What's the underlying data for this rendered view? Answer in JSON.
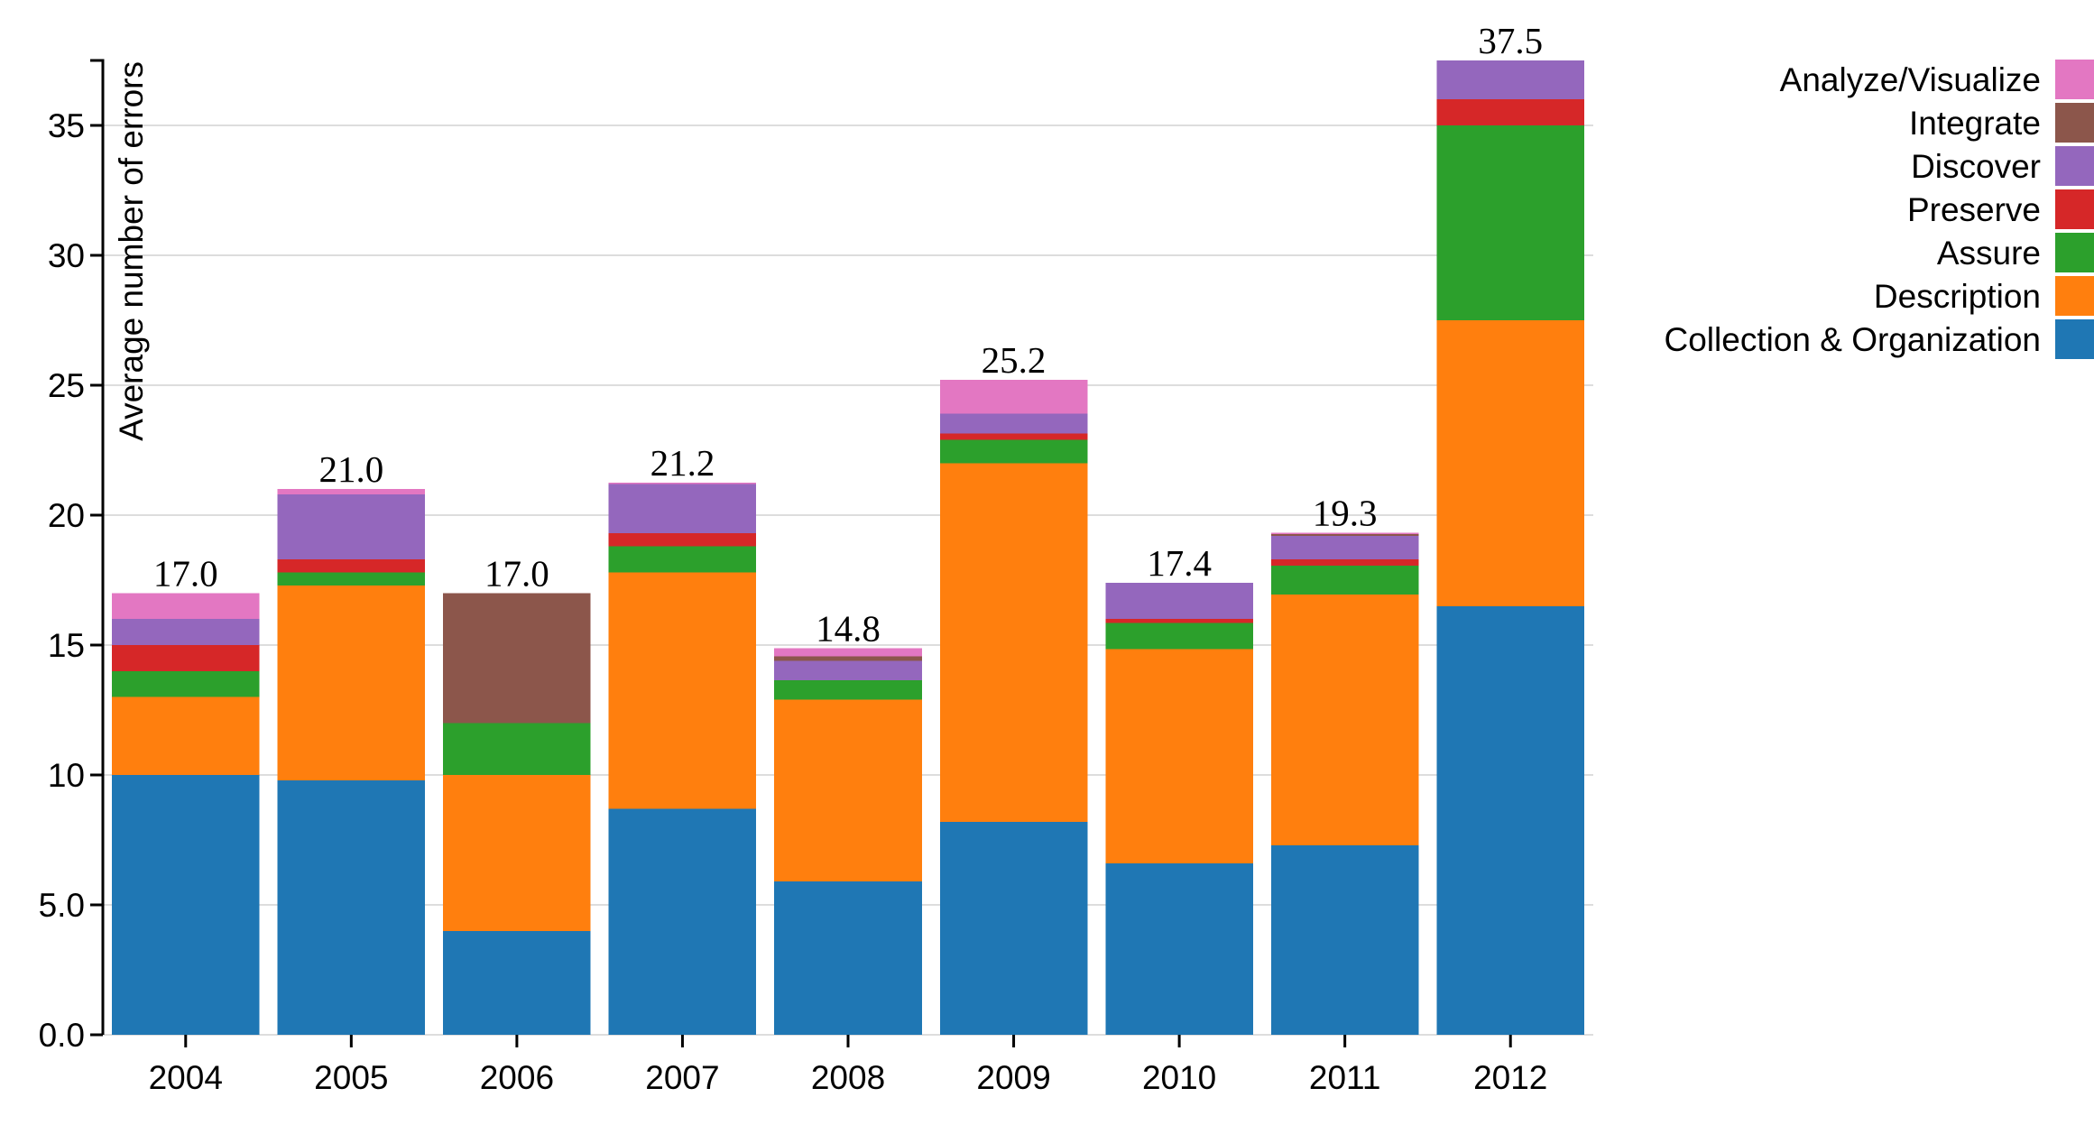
{
  "chart_data": {
    "type": "bar",
    "stacked": true,
    "title": "",
    "xlabel": "",
    "ylabel": "Average number of errors",
    "ylim": [
      0,
      37.5
    ],
    "yticks": [
      0,
      5,
      10,
      15,
      20,
      25,
      30,
      35
    ],
    "ytick_labels": [
      "0.0",
      "5.0",
      "10",
      "15",
      "20",
      "25",
      "30",
      "35"
    ],
    "grid": "horizontal",
    "legend_position": "top-right",
    "categories": [
      "2004",
      "2005",
      "2006",
      "2007",
      "2008",
      "2009",
      "2010",
      "2011",
      "2012"
    ],
    "totals": [
      "17.0",
      "21.0",
      "17.0",
      "21.2",
      "14.8",
      "25.2",
      "17.4",
      "19.3",
      "37.5"
    ],
    "series": [
      {
        "name": "Collection & Organization",
        "color": "#1f77b4",
        "values": [
          10.0,
          9.8,
          4.0,
          8.7,
          5.9,
          8.2,
          6.6,
          7.3,
          16.5
        ]
      },
      {
        "name": "Description",
        "color": "#ff7f0e",
        "values": [
          3.0,
          7.5,
          6.0,
          9.1,
          7.0,
          13.8,
          8.25,
          9.65,
          11.0
        ]
      },
      {
        "name": "Assure",
        "color": "#2ca02c",
        "values": [
          1.0,
          0.5,
          2.0,
          1.0,
          0.75,
          0.9,
          1.0,
          1.1,
          7.5
        ]
      },
      {
        "name": "Preserve",
        "color": "#d62728",
        "values": [
          1.0,
          0.5,
          0.0,
          0.5,
          0.0,
          0.25,
          0.15,
          0.25,
          1.0
        ]
      },
      {
        "name": "Discover",
        "color": "#9467bd",
        "values": [
          1.0,
          2.5,
          0.0,
          1.9,
          0.75,
          0.75,
          1.4,
          0.9,
          1.5
        ]
      },
      {
        "name": "Integrate",
        "color": "#8c564b",
        "values": [
          0.0,
          0.0,
          5.0,
          0.0,
          0.17,
          0.0,
          0.0,
          0.07,
          0.0
        ]
      },
      {
        "name": "Analyze/Visualize",
        "color": "#e377c2",
        "values": [
          1.0,
          0.2,
          0.0,
          0.05,
          0.3,
          1.3,
          0.0,
          0.05,
          0.0
        ]
      }
    ],
    "legend_order": [
      "Analyze/Visualize",
      "Integrate",
      "Discover",
      "Preserve",
      "Assure",
      "Description",
      "Collection & Organization"
    ]
  }
}
